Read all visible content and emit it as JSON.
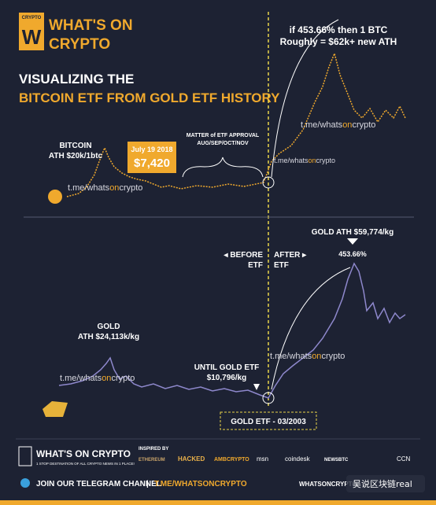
{
  "logo": {
    "badge": "CRYPTO",
    "line1": "WHAT'S ON",
    "line2": "CRYPTO"
  },
  "title": {
    "line1": "VISUALIZING THE",
    "line2": "BITCOIN ETF FROM GOLD ETF HISTORY"
  },
  "watermark": {
    "prefix": "t.me/whats",
    "mid": "on",
    "suffix": "crypto"
  },
  "bitcoin": {
    "projection": [
      "if 453.66% then 1 BTC",
      "Roughly = $62k+ new ATH"
    ],
    "ath": [
      "BITCOIN",
      "ATH $20k/1btc"
    ],
    "date": "July 19 2018",
    "price": "$7,420",
    "approval": [
      "MATTER of ETF APPROVAL",
      "AUG/SEP/OCT/NOV"
    ]
  },
  "gold": {
    "ath_top": "GOLD ATH $59,774/kg",
    "gain": "453.66%",
    "before": [
      "◂ BEFORE",
      "ETF"
    ],
    "after": [
      "AFTER ▸",
      "ETF"
    ],
    "ath": [
      "GOLD",
      "ATH $24,113k/kg"
    ],
    "until": [
      "UNTIL GOLD ETF",
      "$10,796/kg"
    ],
    "etf_date": "GOLD ETF - 03/2003"
  },
  "footer": {
    "brand": "WHAT'S ON CRYPTO",
    "tagline": "1 STOP DESTINATION OF ALL CRYPTO NEWS IN 1 PLACE!",
    "inspired": "INSPIRED BY",
    "sponsors": [
      "ETHEREUM",
      "HACKED",
      "AMBCRYPTO",
      "msn",
      "coindesk",
      "NEWSBTC",
      "CCN"
    ],
    "join": "JOIN OUR TELEGRAM CHANNEL",
    "sep": "|",
    "link": "T.ME/WHATSONCRYPTO",
    "site": "WHATSONCRYPTO",
    "stamp": "吴说区块链real"
  }
}
